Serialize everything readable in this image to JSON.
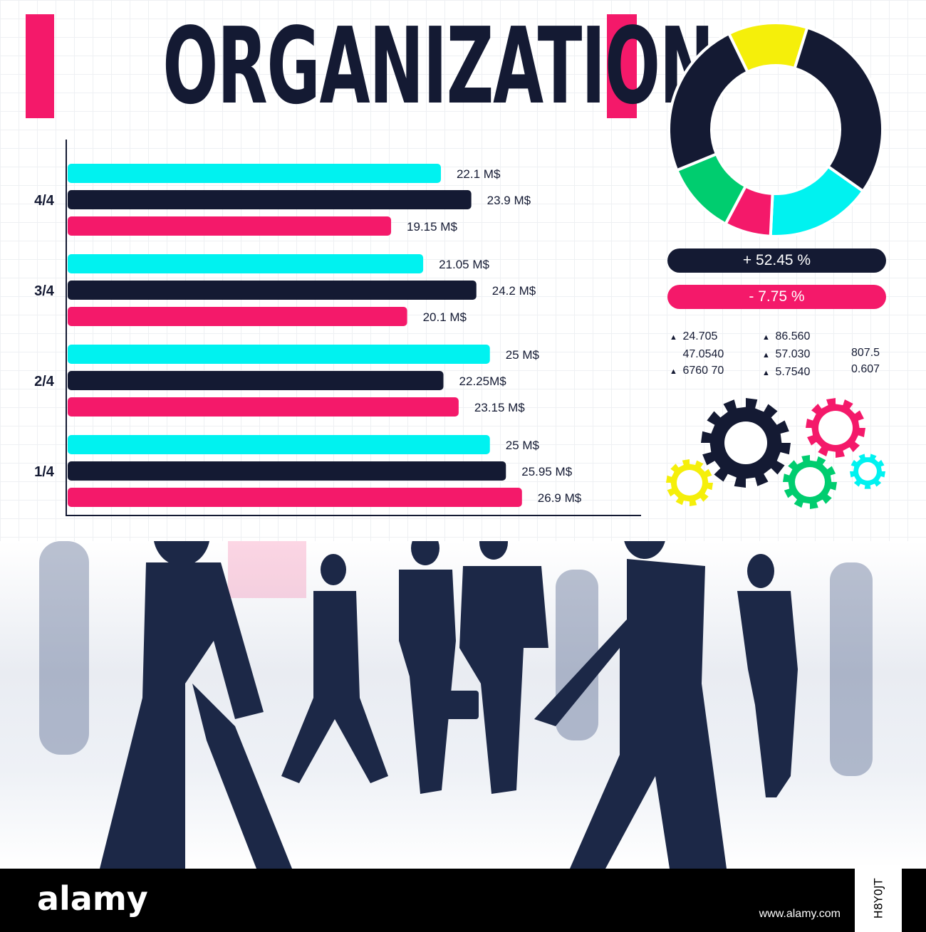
{
  "title": "ORGANIZATION",
  "colors": {
    "cyan": "#00f2f0",
    "navy": "#141a33",
    "pink": "#f4196a",
    "yellow": "#f5ef0a",
    "green": "#00cd6f"
  },
  "chart_data": [
    {
      "type": "bar",
      "orientation": "horizontal",
      "categories": [
        "4/4",
        "3/4",
        "2/4",
        "1/4"
      ],
      "series": [
        {
          "color": "#00f2f0",
          "values": [
            22.1,
            21.05,
            25,
            25
          ],
          "labels": [
            "22.1 M$",
            "21.05 M$",
            "25 M$",
            "25 M$"
          ]
        },
        {
          "color": "#141a33",
          "values": [
            23.9,
            24.2,
            22.25,
            25.95
          ],
          "labels": [
            "23.9 M$",
            "24.2 M$",
            "22.25M$",
            "25.95 M$"
          ]
        },
        {
          "color": "#f4196a",
          "values": [
            19.15,
            20.1,
            23.15,
            26.9
          ],
          "labels": [
            "19.15 M$",
            "20.1 M$",
            "23.15 M$",
            "26.9 M$"
          ]
        }
      ],
      "xlim": [
        0,
        31
      ]
    },
    {
      "type": "pie",
      "style": "donut",
      "slices": [
        {
          "color": "#f5ef0a",
          "value": 12
        },
        {
          "color": "#141a33",
          "value": 30
        },
        {
          "color": "#00f2f0",
          "value": 16
        },
        {
          "color": "#f4196a",
          "value": 7
        },
        {
          "color": "#00cd6f",
          "value": 11
        },
        {
          "color": "#141a33",
          "value": 24
        }
      ]
    }
  ],
  "percent_pills": [
    "+ 52.45 %",
    "- 7.75 %"
  ],
  "stats": {
    "col1": [
      "24.705",
      "47.0540",
      "6760 70"
    ],
    "col2": [
      "86.560",
      "57.030",
      "5.7540"
    ],
    "col3": [
      "807.5",
      "0.607"
    ]
  },
  "footer": {
    "brand": "alamy",
    "image_id": "H8Y0JT",
    "url": "www.alamy.com"
  }
}
